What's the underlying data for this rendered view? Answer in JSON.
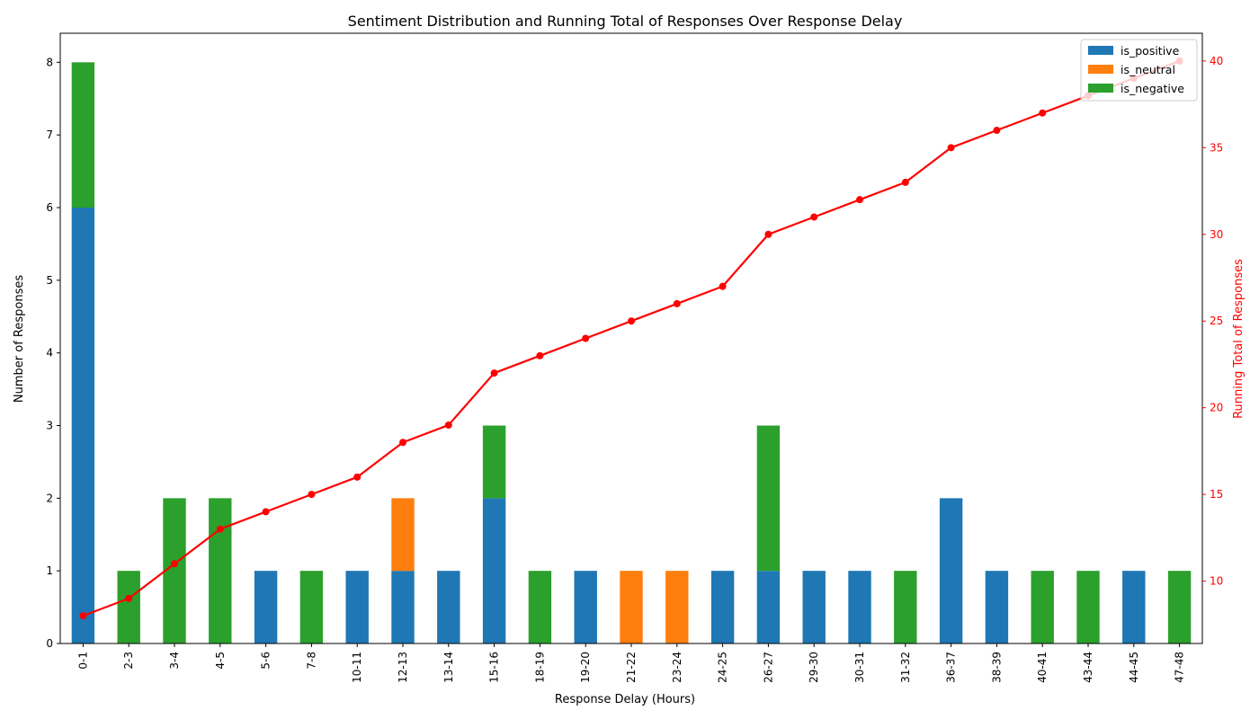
{
  "chart_data": {
    "type": "bar",
    "stacked": true,
    "title": "Sentiment Distribution and Running Total of Responses Over Response Delay",
    "xlabel": "Response Delay (Hours)",
    "ylabel": "Number of Responses",
    "y2label": "Running Total of Responses",
    "ylim": [
      0,
      8.4
    ],
    "y2lim": [
      6.4,
      41.6
    ],
    "yticks": [
      0,
      1,
      2,
      3,
      4,
      5,
      6,
      7,
      8
    ],
    "y2ticks": [
      10,
      15,
      20,
      25,
      30,
      35,
      40
    ],
    "categories": [
      "0-1",
      "2-3",
      "3-4",
      "4-5",
      "5-6",
      "7-8",
      "10-11",
      "12-13",
      "13-14",
      "15-16",
      "18-19",
      "19-20",
      "21-22",
      "23-24",
      "24-25",
      "26-27",
      "29-30",
      "30-31",
      "31-32",
      "36-37",
      "38-39",
      "40-41",
      "43-44",
      "44-45",
      "47-48"
    ],
    "series": [
      {
        "name": "is_positive",
        "color": "#1f77b4",
        "values": [
          6,
          0,
          0,
          0,
          1,
          0,
          1,
          1,
          1,
          2,
          0,
          1,
          0,
          0,
          1,
          1,
          1,
          1,
          0,
          2,
          1,
          0,
          0,
          1,
          0
        ]
      },
      {
        "name": "is_neutral",
        "color": "#ff7f0e",
        "values": [
          0,
          0,
          0,
          0,
          0,
          0,
          0,
          1,
          0,
          0,
          0,
          0,
          1,
          1,
          0,
          0,
          0,
          0,
          0,
          0,
          0,
          0,
          0,
          0,
          0
        ]
      },
      {
        "name": "is_negative",
        "color": "#2ca02c",
        "values": [
          2,
          1,
          2,
          2,
          0,
          1,
          0,
          0,
          0,
          1,
          1,
          0,
          0,
          0,
          0,
          2,
          0,
          0,
          1,
          0,
          0,
          1,
          1,
          0,
          1
        ]
      }
    ],
    "line": {
      "axis": "right",
      "color": "#ff0000",
      "values": [
        8,
        9,
        11,
        13,
        14,
        15,
        16,
        18,
        19,
        22,
        23,
        24,
        25,
        26,
        27,
        30,
        31,
        32,
        33,
        35,
        36,
        37,
        38,
        39,
        40
      ]
    },
    "legend_position": "top-right",
    "grid": false
  }
}
